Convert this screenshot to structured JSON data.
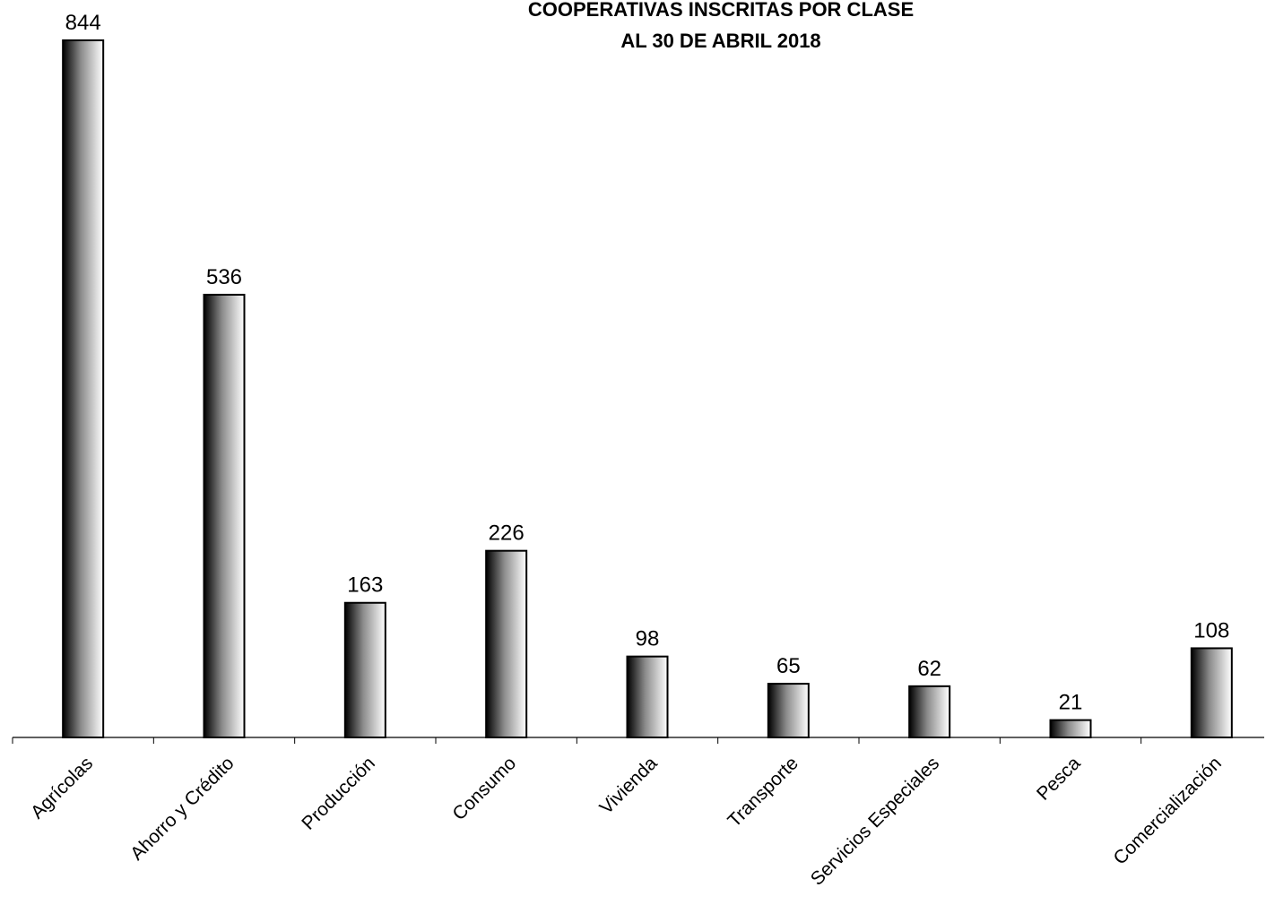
{
  "chart_data": {
    "type": "bar",
    "title": "COOPERATIVAS INSCRITAS POR CLASE",
    "subtitle": "AL 30 DE ABRIL 2018",
    "categories": [
      "Agrícolas",
      "Ahorro y Crédito",
      "Producción",
      "Consumo",
      "Vivienda",
      "Transporte",
      "Servicios Especiales",
      "Pesca",
      "Comercialización"
    ],
    "values": [
      844,
      536,
      163,
      226,
      98,
      65,
      62,
      21,
      108
    ],
    "xlabel": "",
    "ylabel": "",
    "ylim": [
      0,
      850
    ],
    "grid": false,
    "legend": "none",
    "data_labels": true,
    "bar_fill": "horizontal gradient black to white",
    "colors": {
      "bar_dark": "#000000",
      "bar_light": "#ffffff",
      "outline": "#000000"
    }
  }
}
